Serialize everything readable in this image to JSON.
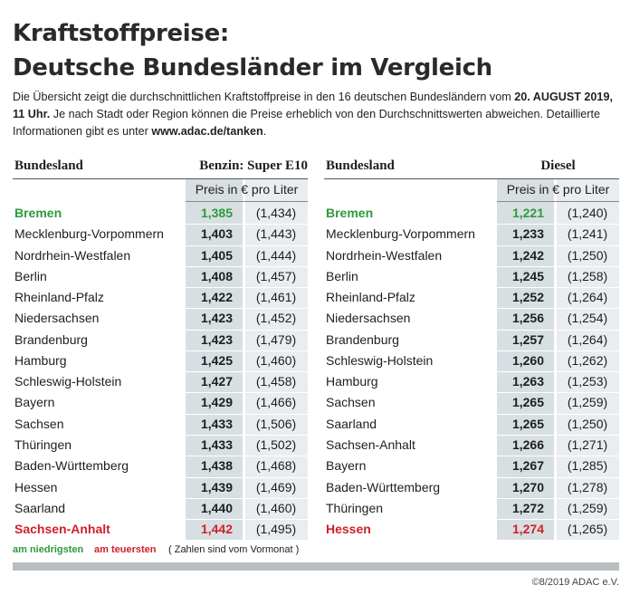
{
  "header": {
    "title_lines": [
      "Kraftstoffpreise:",
      "Deutsche Bundesländer im Vergleich"
    ]
  },
  "intro": [
    "Die Übersicht zeigt die durchschnittlichen Kraftstoffpreise in den 16 deutschen Bundesländern vom ",
    "20. AUGUST 2019, 11 Uhr.",
    " Je nach Stadt oder Region können die Preise erheblich von den Durchschnittswerten abweichen. Detaillierte Informationen gibt es unter ",
    "www.adac.de/tanken",
    "."
  ],
  "tables": [
    {
      "columns": [
        "Bundesland",
        "Benzin: Super E10"
      ],
      "unit": "Preis in € pro Liter",
      "rows": [
        [
          "Bremen",
          "1,385",
          "(1,434)"
        ],
        [
          "Mecklenburg-Vorpommern",
          "1,403",
          "(1,443)"
        ],
        [
          "Nordrhein-Westfalen",
          "1,405",
          "(1,444)"
        ],
        [
          "Berlin",
          "1,408",
          "(1,457)"
        ],
        [
          "Rheinland-Pfalz",
          "1,422",
          "(1,461)"
        ],
        [
          "Niedersachsen",
          "1,423",
          "(1,452)"
        ],
        [
          "Brandenburg",
          "1,423",
          "(1,479)"
        ],
        [
          "Hamburg",
          "1,425",
          "(1,460)"
        ],
        [
          "Schleswig-Holstein",
          "1,427",
          "(1,458)"
        ],
        [
          "Bayern",
          "1,429",
          "(1,466)"
        ],
        [
          "Sachsen",
          "1,433",
          "(1,506)"
        ],
        [
          "Thüringen",
          "1,433",
          "(1,502)"
        ],
        [
          "Baden-Württemberg",
          "1,438",
          "(1,468)"
        ],
        [
          "Hessen",
          "1,439",
          "(1,469)"
        ],
        [
          "Saarland",
          "1,440",
          "(1,460)"
        ],
        [
          "Sachsen-Anhalt",
          "1,442",
          "(1,495)"
        ]
      ]
    },
    {
      "columns": [
        "Bundesland",
        "Diesel"
      ],
      "unit": "Preis in € pro Liter",
      "rows": [
        [
          "Bremen",
          "1,221",
          "(1,240)"
        ],
        [
          "Mecklenburg-Vorpommern",
          "1,233",
          "(1,241)"
        ],
        [
          "Nordrhein-Westfalen",
          "1,242",
          "(1,250)"
        ],
        [
          "Berlin",
          "1,245",
          "(1,258)"
        ],
        [
          "Rheinland-Pfalz",
          "1,252",
          "(1,264)"
        ],
        [
          "Niedersachsen",
          "1,256",
          "(1,254)"
        ],
        [
          "Brandenburg",
          "1,257",
          "(1,264)"
        ],
        [
          "Schleswig-Holstein",
          "1,260",
          "(1,262)"
        ],
        [
          "Hamburg",
          "1,263",
          "(1,253)"
        ],
        [
          "Sachsen",
          "1,265",
          "(1,259)"
        ],
        [
          "Saarland",
          "1,265",
          "(1,250)"
        ],
        [
          "Sachsen-Anhalt",
          "1,266",
          "(1,271)"
        ],
        [
          "Bayern",
          "1,267",
          "(1,285)"
        ],
        [
          "Baden-Württemberg",
          "1,270",
          "(1,278)"
        ],
        [
          "Thüringen",
          "1,272",
          "(1,259)"
        ],
        [
          "Hessen",
          "1,274",
          "(1,265)"
        ]
      ]
    }
  ],
  "legend": {
    "lowest": "am niedrigsten",
    "highest": "am teuersten",
    "note": "( Zahlen sind vom Vormonat )"
  },
  "copyright": "©8/2019 ADAC e.V."
}
